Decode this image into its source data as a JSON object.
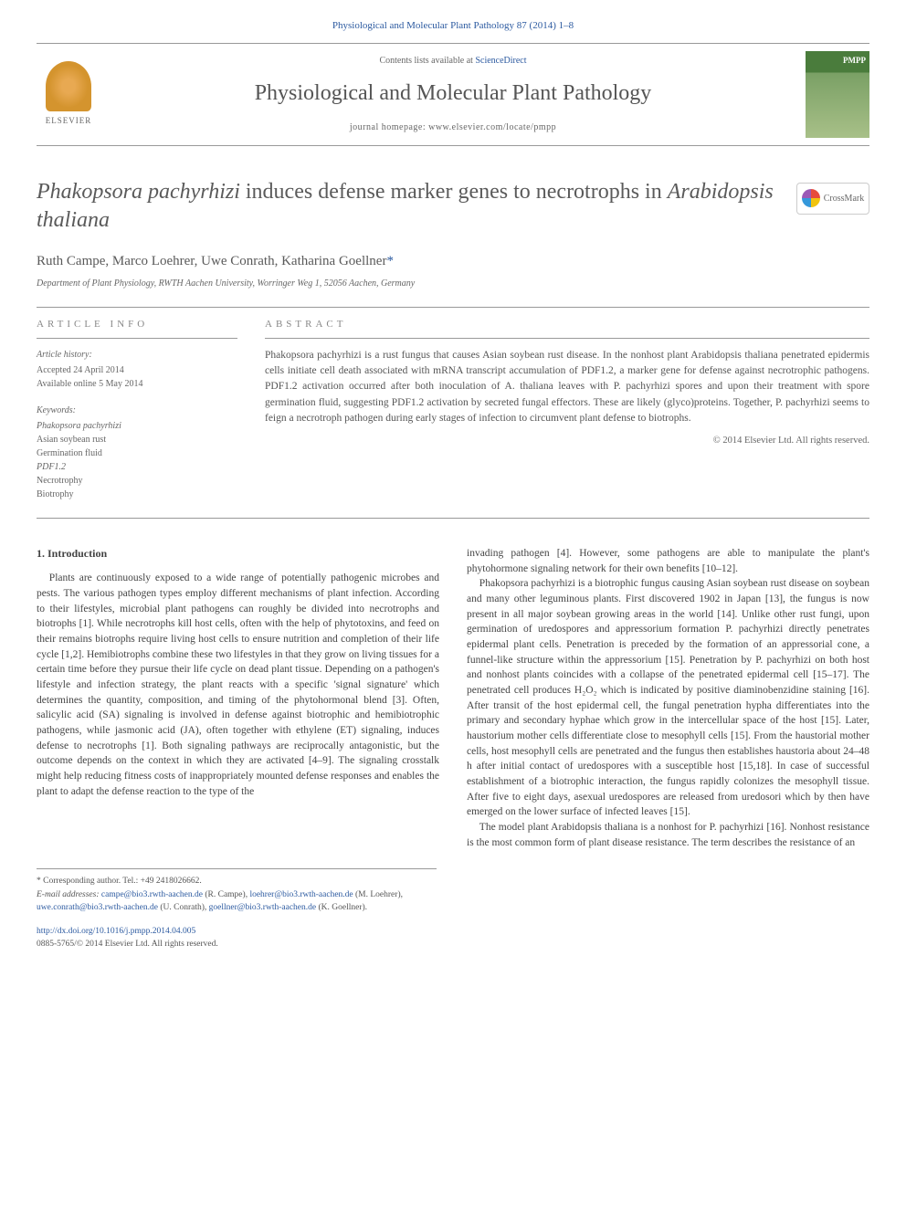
{
  "journal_ref": "Physiological and Molecular Plant Pathology 87 (2014) 1–8",
  "header": {
    "contents_prefix": "Contents lists available at ",
    "contents_link": "ScienceDirect",
    "journal_name": "Physiological and Molecular Plant Pathology",
    "homepage_prefix": "journal homepage: ",
    "homepage_url": "www.elsevier.com/locate/pmpp",
    "elsevier_label": "ELSEVIER",
    "cover_label": "PMPP"
  },
  "title_part1": "Phakopsora pachyrhizi",
  "title_part2": " induces defense marker genes to necrotrophs in ",
  "title_part3": "Arabidopsis thaliana",
  "crossmark_label": "CrossMark",
  "authors": "Ruth Campe, Marco Loehrer, Uwe Conrath, Katharina Goellner",
  "corresponding_marker": "*",
  "affiliation": "Department of Plant Physiology, RWTH Aachen University, Worringer Weg 1, 52056 Aachen, Germany",
  "article_info": {
    "label": "ARTICLE INFO",
    "history_heading": "Article history:",
    "accepted": "Accepted 24 April 2014",
    "online": "Available online 5 May 2014",
    "keywords_heading": "Keywords:",
    "keywords": [
      "Phakopsora pachyrhizi",
      "Asian soybean rust",
      "Germination fluid",
      "PDF1.2",
      "Necrotrophy",
      "Biotrophy"
    ]
  },
  "abstract": {
    "label": "ABSTRACT",
    "text": "Phakopsora pachyrhizi is a rust fungus that causes Asian soybean rust disease. In the nonhost plant Arabidopsis thaliana penetrated epidermis cells initiate cell death associated with mRNA transcript accumulation of PDF1.2, a marker gene for defense against necrotrophic pathogens. PDF1.2 activation occurred after both inoculation of A. thaliana leaves with P. pachyrhizi spores and upon their treatment with spore germination fluid, suggesting PDF1.2 activation by secreted fungal effectors. These are likely (glyco)proteins. Together, P. pachyrhizi seems to feign a necrotroph pathogen during early stages of infection to circumvent plant defense to biotrophs.",
    "copyright": "© 2014 Elsevier Ltd. All rights reserved."
  },
  "intro": {
    "heading": "1. Introduction",
    "para1": "Plants are continuously exposed to a wide range of potentially pathogenic microbes and pests. The various pathogen types employ different mechanisms of plant infection. According to their lifestyles, microbial plant pathogens can roughly be divided into necrotrophs and biotrophs [1]. While necrotrophs kill host cells, often with the help of phytotoxins, and feed on their remains biotrophs require living host cells to ensure nutrition and completion of their life cycle [1,2]. Hemibiotrophs combine these two lifestyles in that they grow on living tissues for a certain time before they pursue their life cycle on dead plant tissue. Depending on a pathogen's lifestyle and infection strategy, the plant reacts with a specific 'signal signature' which determines the quantity, composition, and timing of the phytohormonal blend [3]. Often, salicylic acid (SA) signaling is involved in defense against biotrophic and hemibiotrophic pathogens, while jasmonic acid (JA), often together with ethylene (ET) signaling, induces defense to necrotrophs [1]. Both signaling pathways are reciprocally antagonistic, but the outcome depends on the context in which they are activated [4–9]. The signaling crosstalk might help reducing fitness costs of inappropriately mounted defense responses and enables the plant to adapt the defense reaction to the type of the",
    "para2_start": "invading pathogen [4]. However, some pathogens are able to manipulate the plant's phytohormone signaling network for their own benefits [10–12].",
    "para3": "Phakopsora pachyrhizi is a biotrophic fungus causing Asian soybean rust disease on soybean and many other leguminous plants. First discovered 1902 in Japan [13], the fungus is now present in all major soybean growing areas in the world [14]. Unlike other rust fungi, upon germination of uredospores and appressorium formation P. pachyrhizi directly penetrates epidermal plant cells. Penetration is preceded by the formation of an appressorial cone, a funnel-like structure within the appressorium [15]. Penetration by P. pachyrhizi on both host and nonhost plants coincides with a collapse of the penetrated epidermal cell [15–17]. The penetrated cell produces H₂O₂ which is indicated by positive diaminobenzidine staining [16]. After transit of the host epidermal cell, the fungal penetration hypha differentiates into the primary and secondary hyphae which grow in the intercellular space of the host [15]. Later, haustorium mother cells differentiate close to mesophyll cells [15]. From the haustorial mother cells, host mesophyll cells are penetrated and the fungus then establishes haustoria about 24–48 h after initial contact of uredospores with a susceptible host [15,18]. In case of successful establishment of a biotrophic interaction, the fungus rapidly colonizes the mesophyll tissue. After five to eight days, asexual uredospores are released from uredosori which by then have emerged on the lower surface of infected leaves [15].",
    "para4": "The model plant Arabidopsis thaliana is a nonhost for P. pachyrhizi [16]. Nonhost resistance is the most common form of plant disease resistance. The term describes the resistance of an"
  },
  "footnotes": {
    "corresponding": "* Corresponding author. Tel.: +49 2418026662.",
    "emails_label": "E-mail addresses: ",
    "emails": [
      {
        "addr": "campe@bio3.rwth-aachen.de",
        "person": "(R. Campe)"
      },
      {
        "addr": "loehrer@bio3.rwth-aachen.de",
        "person": "(M. Loehrer)"
      },
      {
        "addr": "uwe.conrath@bio3.rwth-aachen.de",
        "person": "(U. Conrath)"
      },
      {
        "addr": "goellner@bio3.rwth-aachen.de",
        "person": "(K. Goellner)"
      }
    ]
  },
  "doi": {
    "url": "http://dx.doi.org/10.1016/j.pmpp.2014.04.005",
    "issn_line": "0885-5765/© 2014 Elsevier Ltd. All rights reserved."
  },
  "colors": {
    "link": "#2c5aa0",
    "text": "#444444",
    "heading": "#5a5a5a",
    "border": "#999999"
  }
}
